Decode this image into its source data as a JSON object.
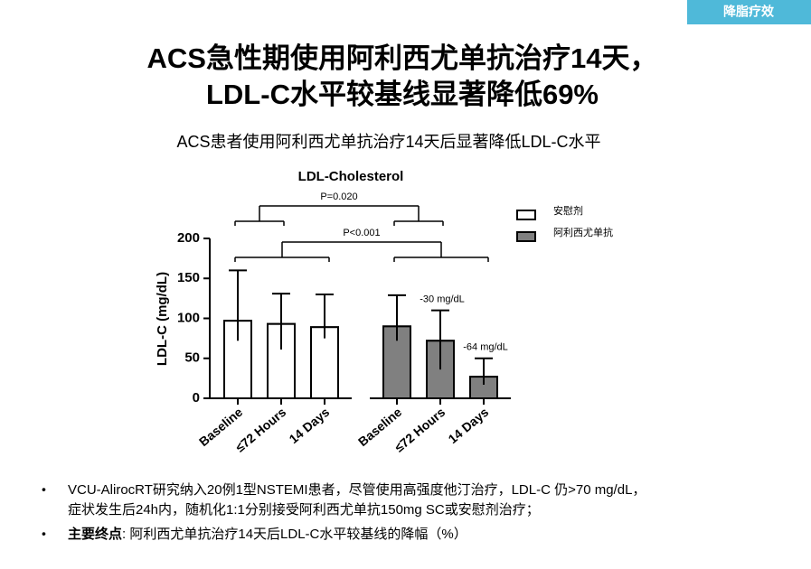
{
  "tag": "降脂疗效",
  "title": [
    "ACS急性期使用阿利西尤单抗治疗14天，",
    "LDL-C水平较基线显著降低69%"
  ],
  "subtitle": "ACS患者使用阿利西尤单抗治疗14天后显著降低LDL-C水平",
  "bullets": [
    {
      "lines": [
        "VCU-AlirocRT研究纳入20例1型NSTEMI患者，尽管使用高强度他汀治疗，LDL-C 仍>70 mg/dL，",
        "症状发生后24h内，随机化1:1分别接受阿利西尤单抗150mg SC或安慰剂治疗；"
      ]
    },
    {
      "label": "主要终点",
      "text": ": 阿利西尤单抗治疗14天后LDL-C水平较基线的降幅（%）"
    }
  ],
  "chart_data": {
    "type": "bar",
    "title": "LDL-Cholesterol",
    "y_label": "LDL-C (mg/dL)",
    "categories": [
      "Baseline",
      "≤72 Hours",
      "14 Days"
    ],
    "series": [
      {
        "name": "安慰剂",
        "color": "#ffffff",
        "values": [
          97,
          93,
          89
        ],
        "lower": [
          72,
          61,
          75
        ],
        "upper": [
          160,
          131,
          130
        ]
      },
      {
        "name": "阿利西尤单抗",
        "color": "#808080",
        "values": [
          90,
          72,
          27
        ],
        "lower": [
          72,
          36,
          17
        ],
        "upper": [
          129,
          110,
          50
        ]
      }
    ],
    "annotations": [
      {
        "series": 1,
        "index": 1,
        "text": "-30 mg/dL"
      },
      {
        "series": 1,
        "index": 2,
        "text": "-64 mg/dL"
      }
    ],
    "comparisons": [
      {
        "index": 1,
        "text": "P<0.001"
      },
      {
        "index": 0,
        "text": "P=0.020"
      }
    ],
    "ylim": [
      0,
      200
    ],
    "yticks": [
      0,
      50,
      100,
      150,
      200
    ],
    "legend": "right"
  }
}
